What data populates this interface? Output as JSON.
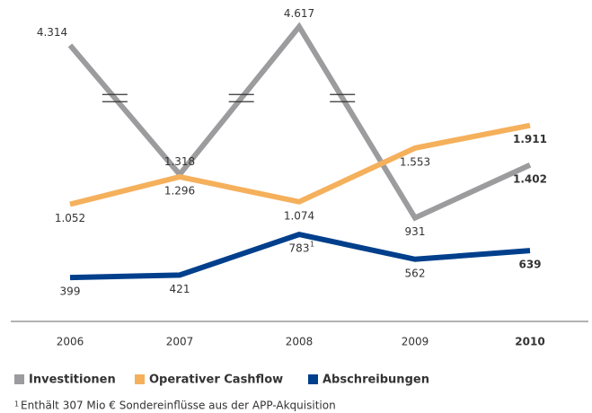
{
  "chart_data": {
    "type": "line",
    "categories": [
      "2006",
      "2007",
      "2008",
      "2009",
      "2010"
    ],
    "series": [
      {
        "name": "Investitionen",
        "color": "#9c9c9e",
        "values": [
          4314,
          1318,
          4617,
          931,
          1402
        ],
        "value_labels": [
          "4.314",
          "1.318",
          "4.617",
          "931",
          "1.402"
        ]
      },
      {
        "name": "Operativer Cashflow",
        "color": "#f5b05c",
        "values": [
          1052,
          1296,
          1074,
          1553,
          1911
        ],
        "value_labels": [
          "1.052",
          "1.296",
          "1.074",
          "1.553",
          "1.911"
        ]
      },
      {
        "name": "Abschreibungen",
        "color": "#003f8c",
        "values": [
          399,
          421,
          783,
          562,
          639
        ],
        "value_labels": [
          "399",
          "421",
          "783",
          "562",
          "639"
        ]
      }
    ],
    "ylim": [
      0,
      4700
    ],
    "ybreak": [
      1700,
      4000
    ],
    "annotation": {
      "marker": "1",
      "series": 2,
      "index": 2
    },
    "footnote": {
      "marker": "1",
      "text": "Enthält 307 Mio € Sondereinflüsse aus der APP-Akquisition"
    }
  }
}
